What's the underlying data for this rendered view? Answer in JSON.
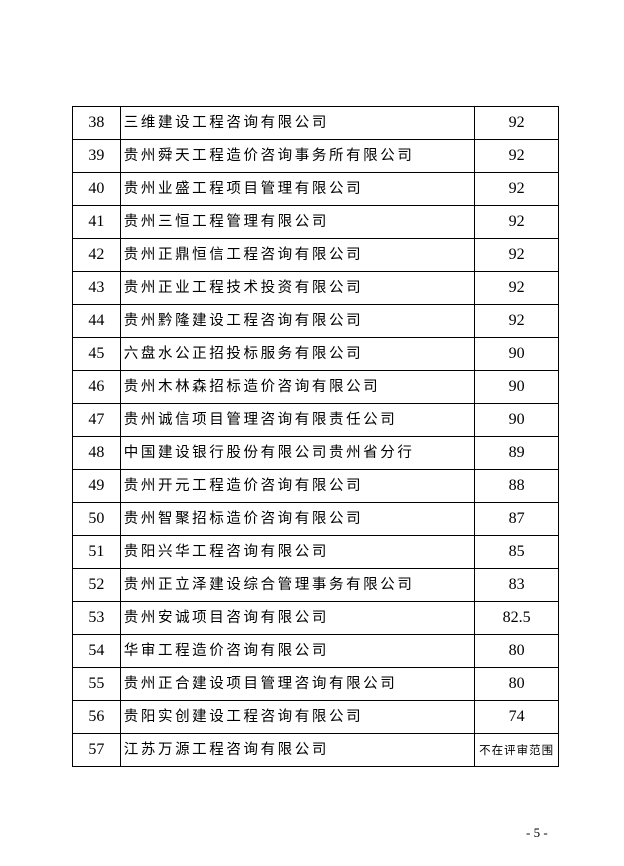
{
  "table": {
    "rows": [
      {
        "no": "38",
        "name": "三维建设工程咨询有限公司",
        "score": "92"
      },
      {
        "no": "39",
        "name": "贵州舜天工程造价咨询事务所有限公司",
        "score": "92"
      },
      {
        "no": "40",
        "name": "贵州业盛工程项目管理有限公司",
        "score": "92"
      },
      {
        "no": "41",
        "name": "贵州三恒工程管理有限公司",
        "score": "92"
      },
      {
        "no": "42",
        "name": "贵州正鼎恒信工程咨询有限公司",
        "score": "92"
      },
      {
        "no": "43",
        "name": "贵州正业工程技术投资有限公司",
        "score": "92"
      },
      {
        "no": "44",
        "name": "贵州黔隆建设工程咨询有限公司",
        "score": "92"
      },
      {
        "no": "45",
        "name": "六盘水公正招投标服务有限公司",
        "score": "90"
      },
      {
        "no": "46",
        "name": "贵州木林森招标造价咨询有限公司",
        "score": "90"
      },
      {
        "no": "47",
        "name": "贵州诚信项目管理咨询有限责任公司",
        "score": "90"
      },
      {
        "no": "48",
        "name": "中国建设银行股份有限公司贵州省分行",
        "score": "89"
      },
      {
        "no": "49",
        "name": "贵州开元工程造价咨询有限公司",
        "score": "88"
      },
      {
        "no": "50",
        "name": "贵州智聚招标造价咨询有限公司",
        "score": "87"
      },
      {
        "no": "51",
        "name": "贵阳兴华工程咨询有限公司",
        "score": "85"
      },
      {
        "no": "52",
        "name": "贵州正立泽建设综合管理事务有限公司",
        "score": "83"
      },
      {
        "no": "53",
        "name": "贵州安诚项目咨询有限公司",
        "score": "82.5"
      },
      {
        "no": "54",
        "name": "华审工程造价咨询有限公司",
        "score": "80"
      },
      {
        "no": "55",
        "name": "贵州正合建设项目管理咨询有限公司",
        "score": "80"
      },
      {
        "no": "56",
        "name": "贵阳实创建设工程咨询有限公司",
        "score": "74"
      },
      {
        "no": "57",
        "name": "江苏万源工程咨询有限公司",
        "score": "不在评审范围"
      }
    ]
  },
  "footer": {
    "page_number": "- 5 -"
  }
}
